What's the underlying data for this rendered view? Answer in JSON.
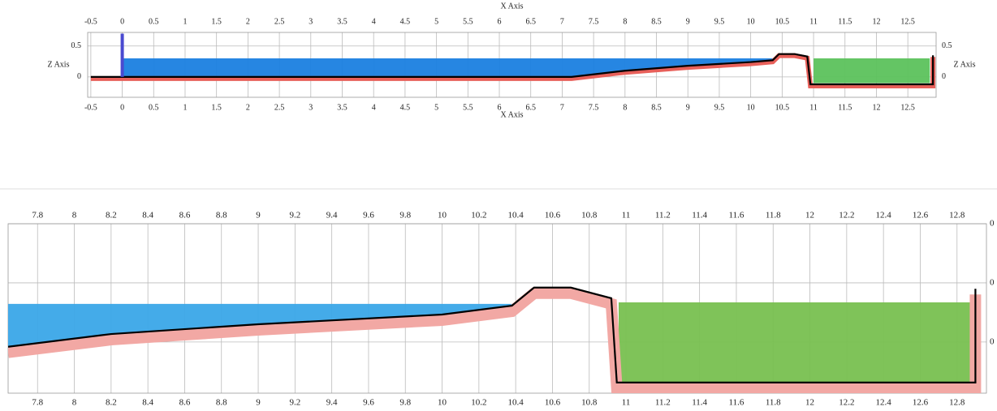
{
  "chart_data": [
    {
      "type": "profile",
      "x_label": "X Axis",
      "y_label": "Z Axis",
      "xlim": [
        -0.55,
        12.95
      ],
      "ylim": [
        -0.33,
        0.72
      ],
      "xticks": [
        -0.5,
        0,
        0.5,
        1,
        1.5,
        2,
        2.5,
        3,
        3.5,
        4,
        4.5,
        5,
        5.5,
        6,
        6.5,
        7,
        7.5,
        8,
        8.5,
        9,
        9.5,
        10,
        10.5,
        11,
        11.5,
        12,
        12.5
      ],
      "yticks": [
        0,
        0.5
      ],
      "grid": true,
      "series": [
        {
          "kind": "fill",
          "color": "#1a80e0",
          "x": [
            0,
            10.4,
            10.35,
            10,
            9,
            8,
            7.15,
            0
          ],
          "values": [
            0.3,
            0.3,
            0.27,
            0.24,
            0.18,
            0.1,
            0,
            0
          ]
        },
        {
          "kind": "fill",
          "color": "#5cc25c",
          "x": [
            11,
            11,
            12.85,
            12.85
          ],
          "values": [
            -0.1,
            0.3,
            0.3,
            -0.1
          ]
        },
        {
          "kind": "bed",
          "color": "#000000",
          "band_color": "#e8605a",
          "x": [
            -0.5,
            7.15,
            8,
            9,
            10,
            10.35,
            10.45,
            10.7,
            10.9,
            10.95,
            12.9,
            12.9
          ],
          "values": [
            0,
            0,
            0.1,
            0.18,
            0.24,
            0.27,
            0.37,
            0.37,
            0.33,
            -0.12,
            -0.12,
            0.35
          ]
        },
        {
          "kind": "gate",
          "color": "#4a4ad0",
          "x": [
            0,
            0
          ],
          "values": [
            0,
            0.7
          ]
        }
      ]
    },
    {
      "type": "profile",
      "xlim": [
        7.64,
        12.96
      ],
      "ylim": [
        0.027,
        0.6
      ],
      "xticks": [
        7.8,
        8,
        8.2,
        8.4,
        8.6,
        8.8,
        9,
        9.2,
        9.4,
        9.6,
        9.8,
        10,
        10.2,
        10.4,
        10.6,
        10.8,
        11,
        11.2,
        11.4,
        11.6,
        11.8,
        12,
        12.2,
        12.4,
        12.6,
        12.8
      ],
      "yticks": [
        {
          "value": 0.6,
          "label": "0"
        },
        {
          "value": 0.4,
          "label": "0"
        },
        {
          "value": 0.2,
          "label": "0"
        }
      ],
      "grid": true,
      "series": [
        {
          "kind": "fill",
          "color": "#3aa6e8",
          "x": [
            7.64,
            10.38,
            10.38,
            10,
            9,
            8.2,
            7.64
          ],
          "values": [
            0.329,
            0.329,
            0.323,
            0.293,
            0.26,
            0.227,
            0.184
          ]
        },
        {
          "kind": "fill",
          "color": "#78c050",
          "x": [
            10.96,
            10.96,
            12.88,
            12.88
          ],
          "values": [
            0.063,
            0.334,
            0.334,
            0.063
          ]
        },
        {
          "kind": "bed",
          "color": "#000000",
          "band_color": "#f2a8a4",
          "x": [
            7.64,
            8.2,
            9,
            10,
            10.38,
            10.5,
            10.7,
            10.92,
            10.95,
            12.9,
            12.9
          ],
          "values": [
            0.184,
            0.227,
            0.26,
            0.293,
            0.323,
            0.384,
            0.384,
            0.348,
            0.063,
            0.063,
            0.38
          ]
        }
      ]
    }
  ]
}
